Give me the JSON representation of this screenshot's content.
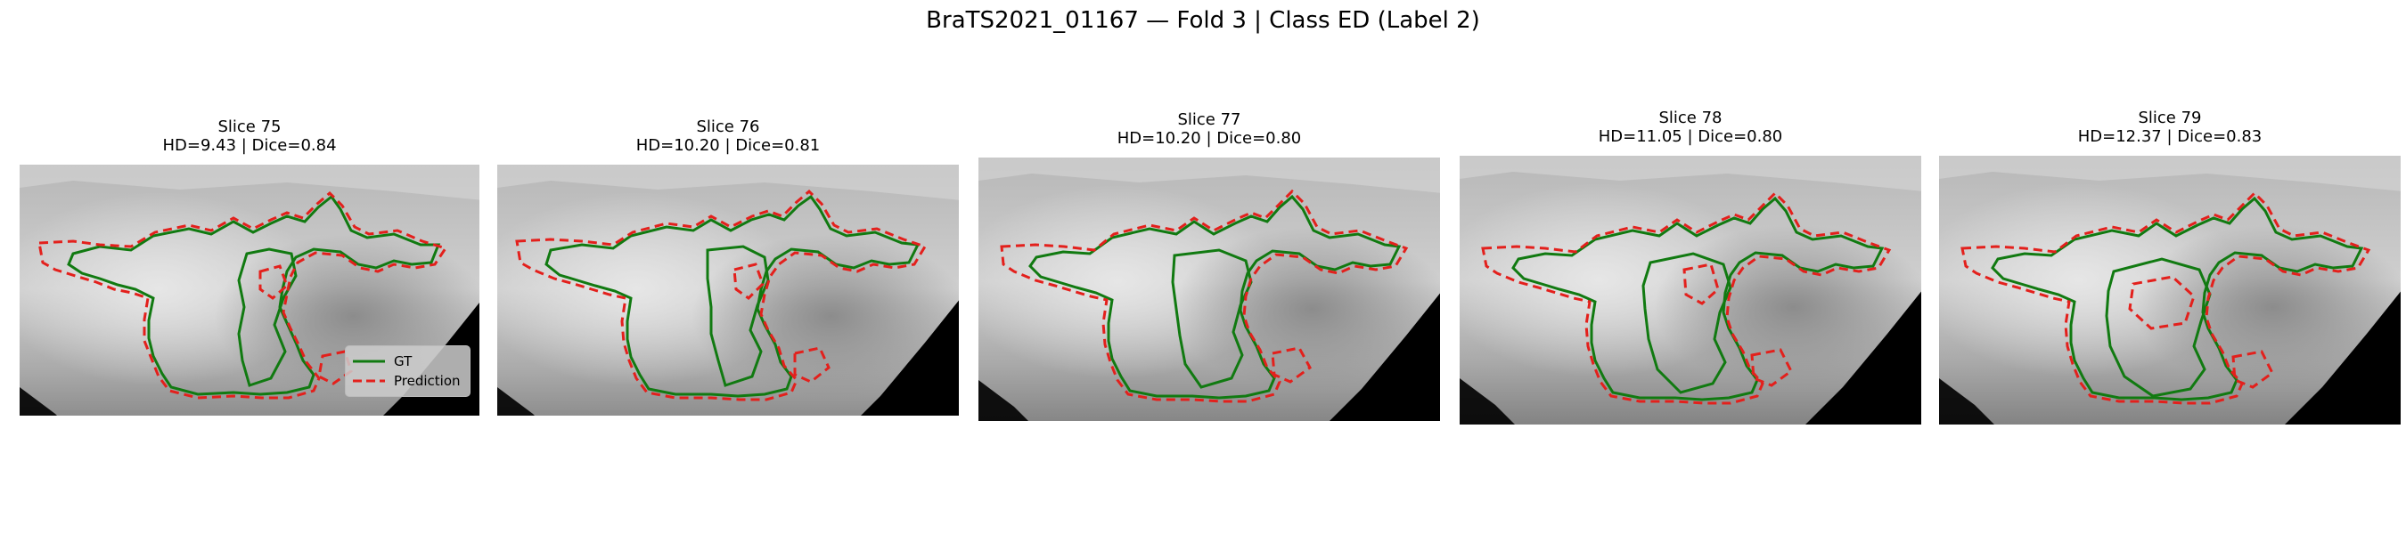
{
  "figure": {
    "suptitle": "BraTS2021_01167 — Fold 3 | Class ED (Label 2)"
  },
  "panels": [
    {
      "title": "Slice 75",
      "metrics": "HD=9.43 | Dice=0.84"
    },
    {
      "title": "Slice 76",
      "metrics": "HD=10.20 | Dice=0.81"
    },
    {
      "title": "Slice 77",
      "metrics": "HD=10.20 | Dice=0.80"
    },
    {
      "title": "Slice 78",
      "metrics": "HD=11.05 | Dice=0.80"
    },
    {
      "title": "Slice 79",
      "metrics": "HD=12.37 | Dice=0.83"
    }
  ],
  "legend": {
    "gt_label": "GT",
    "pred_label": "Prediction"
  },
  "colors": {
    "gt": "#117a11",
    "prediction": "#e3201c",
    "background": "#000000"
  }
}
